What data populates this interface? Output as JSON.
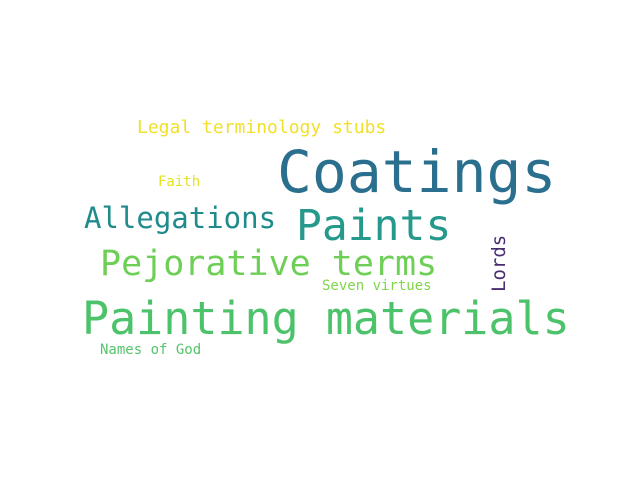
{
  "words": {
    "coatings": {
      "text": "Coatings",
      "color": "#2b6f8e"
    },
    "painting_materials": {
      "text": "Painting materials",
      "color": "#4cc26a"
    },
    "paints": {
      "text": "Paints",
      "color": "#259a8c"
    },
    "pejorative_terms": {
      "text": "Pejorative terms",
      "color": "#6ecf56"
    },
    "allegations": {
      "text": "Allegations",
      "color": "#1f8b8a"
    },
    "legal_terminology_stubs": {
      "text": "Legal terminology stubs",
      "color": "#f1e02a"
    },
    "seven_virtues": {
      "text": "Seven virtues",
      "color": "#80d54b"
    },
    "names_of_god": {
      "text": "Names of God",
      "color": "#55c46a"
    },
    "faith": {
      "text": "Faith",
      "color": "#e6e221"
    },
    "lords": {
      "text": "Lords",
      "color": "#472d6e"
    }
  }
}
